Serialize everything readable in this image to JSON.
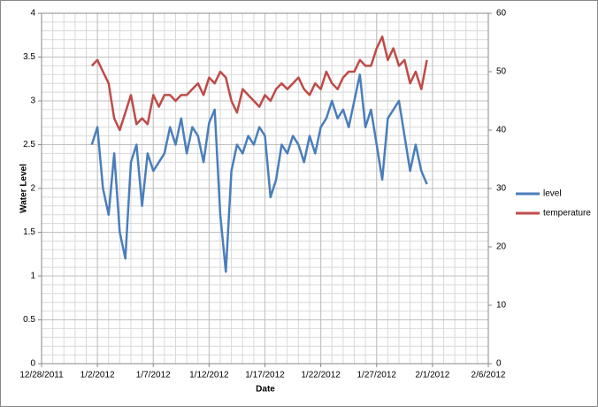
{
  "chart_data": {
    "type": "line",
    "x_label": "Date",
    "y_label": "Water Level",
    "x": [
      "2012-01-01T12:00",
      "2012-01-02T00:00",
      "2012-01-02T12:00",
      "2012-01-03T00:00",
      "2012-01-03T12:00",
      "2012-01-04T00:00",
      "2012-01-04T12:00",
      "2012-01-05T00:00",
      "2012-01-05T12:00",
      "2012-01-06T00:00",
      "2012-01-06T12:00",
      "2012-01-07T00:00",
      "2012-01-07T12:00",
      "2012-01-08T00:00",
      "2012-01-08T12:00",
      "2012-01-09T00:00",
      "2012-01-09T12:00",
      "2012-01-10T00:00",
      "2012-01-10T12:00",
      "2012-01-11T00:00",
      "2012-01-11T12:00",
      "2012-01-12T00:00",
      "2012-01-12T12:00",
      "2012-01-13T00:00",
      "2012-01-13T12:00",
      "2012-01-14T00:00",
      "2012-01-14T12:00",
      "2012-01-15T00:00",
      "2012-01-15T12:00",
      "2012-01-16T00:00",
      "2012-01-16T12:00",
      "2012-01-17T00:00",
      "2012-01-17T12:00",
      "2012-01-18T00:00",
      "2012-01-18T12:00",
      "2012-01-19T00:00",
      "2012-01-19T12:00",
      "2012-01-20T00:00",
      "2012-01-20T12:00",
      "2012-01-21T00:00",
      "2012-01-21T12:00",
      "2012-01-22T00:00",
      "2012-01-22T12:00",
      "2012-01-23T00:00",
      "2012-01-23T12:00",
      "2012-01-24T00:00",
      "2012-01-24T12:00",
      "2012-01-25T00:00",
      "2012-01-25T12:00",
      "2012-01-26T00:00",
      "2012-01-26T12:00",
      "2012-01-27T00:00",
      "2012-01-27T12:00",
      "2012-01-28T00:00",
      "2012-01-28T12:00",
      "2012-01-29T00:00",
      "2012-01-29T12:00",
      "2012-01-30T00:00",
      "2012-01-30T12:00",
      "2012-01-31T00:00",
      "2012-01-31T12:00"
    ],
    "series": [
      {
        "name": "level",
        "color": "#4a7ebb",
        "values": [
          2.5,
          2.7,
          2.0,
          1.7,
          2.4,
          1.5,
          1.2,
          2.3,
          2.5,
          1.8,
          2.4,
          2.2,
          2.3,
          2.4,
          2.7,
          2.5,
          2.8,
          2.4,
          2.7,
          2.6,
          2.3,
          2.75,
          2.9,
          1.7,
          1.05,
          2.2,
          2.5,
          2.4,
          2.6,
          2.5,
          2.7,
          2.6,
          1.9,
          2.1,
          2.5,
          2.4,
          2.6,
          2.5,
          2.3,
          2.6,
          2.4,
          2.7,
          2.8,
          3.0,
          2.8,
          2.9,
          2.7,
          3.0,
          3.3,
          2.7,
          2.9,
          2.5,
          2.1,
          2.8,
          2.9,
          3.0,
          2.6,
          2.2,
          2.5,
          2.2,
          2.05
        ]
      },
      {
        "name": "temperature",
        "color": "#be4b48",
        "axis": "y2",
        "values": [
          51,
          52,
          50,
          48,
          42,
          40,
          43,
          46,
          41,
          42,
          41,
          46,
          44,
          46,
          46,
          45,
          46,
          46,
          47,
          48,
          46,
          49,
          48,
          50,
          49,
          45,
          43,
          47,
          46,
          45,
          44,
          46,
          45,
          47,
          48,
          47,
          48,
          49,
          47,
          46,
          48,
          47,
          50,
          48,
          47,
          49,
          50,
          50,
          52,
          51,
          51,
          54,
          56,
          52,
          54,
          51,
          52,
          48,
          50,
          47,
          52
        ]
      }
    ],
    "xlim": [
      "2011-12-28T00:00",
      "2012-02-06T00:00"
    ],
    "xticks": [
      {
        "value": "2011-12-28T00:00",
        "label": "12/28/2011"
      },
      {
        "value": "2012-01-02T00:00",
        "label": "1/2/2012"
      },
      {
        "value": "2012-01-07T00:00",
        "label": "1/7/2012"
      },
      {
        "value": "2012-01-12T00:00",
        "label": "1/12/2012"
      },
      {
        "value": "2012-01-17T00:00",
        "label": "1/17/2012"
      },
      {
        "value": "2012-01-22T00:00",
        "label": "1/22/2012"
      },
      {
        "value": "2012-01-27T00:00",
        "label": "1/27/2012"
      },
      {
        "value": "2012-02-01T00:00",
        "label": "2/1/2012"
      },
      {
        "value": "2012-02-06T00:00",
        "label": "2/6/2012"
      }
    ],
    "ylim": [
      0,
      4
    ],
    "yticks": [
      0,
      0.5,
      1,
      1.5,
      2,
      2.5,
      3,
      3.5,
      4
    ],
    "y2lim": [
      0,
      60
    ],
    "y2ticks": [
      0,
      10,
      20,
      30,
      40,
      50,
      60
    ],
    "grid": true,
    "minor_grid": true,
    "legend": "right"
  }
}
